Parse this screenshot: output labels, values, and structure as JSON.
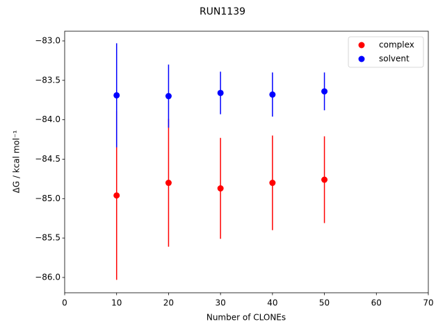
{
  "chart_data": {
    "type": "errorbar-scatter",
    "title": "RUN1139",
    "x_label": "Number of CLONEs",
    "y_label": "ΔG / kcal mol⁻¹",
    "xlim": [
      0,
      70
    ],
    "xticks": [
      0,
      10,
      20,
      30,
      40,
      50,
      60,
      70
    ],
    "ylim": [
      -86.194,
      -82.877
    ],
    "yticks": [
      {
        "value": -86.0,
        "label": "−86.0"
      },
      {
        "value": -85.5,
        "label": "−85.5"
      },
      {
        "value": -85.0,
        "label": "−85.0"
      },
      {
        "value": -84.5,
        "label": "−84.5"
      },
      {
        "value": -84.0,
        "label": "−84.0"
      },
      {
        "value": -83.5,
        "label": "−83.5"
      },
      {
        "value": -83.0,
        "label": "−83.0"
      }
    ],
    "legend": "upper right",
    "series": [
      {
        "name": "complex",
        "color": "#ff0000",
        "x": [
          10,
          20,
          30,
          40,
          50
        ],
        "values": [
          -84.96,
          -84.8,
          -84.87,
          -84.8,
          -84.76
        ],
        "errors": [
          1.07,
          0.81,
          0.64,
          0.6,
          0.55
        ]
      },
      {
        "name": "solvent",
        "color": "#0000ff",
        "x": [
          10,
          20,
          30,
          40,
          50
        ],
        "values": [
          -83.69,
          -83.7,
          -83.66,
          -83.68,
          -83.64
        ],
        "errors": [
          0.66,
          0.4,
          0.27,
          0.28,
          0.24
        ]
      }
    ]
  }
}
